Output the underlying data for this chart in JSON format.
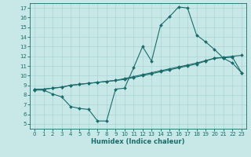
{
  "xlabel": "Humidex (Indice chaleur)",
  "bg_color": "#c8e8e8",
  "line_color": "#1a6b6b",
  "grid_color": "#aad4d4",
  "xlim": [
    -0.5,
    23.5
  ],
  "ylim": [
    4.5,
    17.5
  ],
  "xticks": [
    0,
    1,
    2,
    3,
    4,
    5,
    6,
    7,
    8,
    9,
    10,
    11,
    12,
    13,
    14,
    15,
    16,
    17,
    18,
    19,
    20,
    21,
    22,
    23
  ],
  "yticks": [
    5,
    6,
    7,
    8,
    9,
    10,
    11,
    12,
    13,
    14,
    15,
    16,
    17
  ],
  "line1_x": [
    0,
    1,
    2,
    3,
    4,
    5,
    6,
    7,
    8,
    9,
    10,
    11,
    12,
    13,
    14,
    15,
    16,
    17,
    18,
    19,
    20,
    21,
    22,
    23
  ],
  "line1_y": [
    8.5,
    8.5,
    8.1,
    7.8,
    6.8,
    6.6,
    6.5,
    5.3,
    5.3,
    8.6,
    8.7,
    10.8,
    13.0,
    11.5,
    15.2,
    16.1,
    17.1,
    17.0,
    14.2,
    13.5,
    12.7,
    11.8,
    11.3,
    10.3
  ],
  "line2_x": [
    0,
    1,
    2,
    3,
    4,
    5,
    6,
    7,
    8,
    9,
    10,
    11,
    12,
    13,
    14,
    15,
    16,
    17,
    18,
    19,
    20,
    21,
    22,
    23
  ],
  "line2_y": [
    8.6,
    8.6,
    8.7,
    8.8,
    9.0,
    9.1,
    9.2,
    9.3,
    9.4,
    9.5,
    9.6,
    9.8,
    10.0,
    10.2,
    10.4,
    10.6,
    10.8,
    11.0,
    11.2,
    11.5,
    11.8,
    11.9,
    12.0,
    12.1
  ],
  "line3_x": [
    0,
    1,
    2,
    3,
    4,
    5,
    6,
    7,
    8,
    9,
    10,
    11,
    12,
    13,
    14,
    15,
    16,
    17,
    18,
    19,
    20,
    21,
    22,
    23
  ],
  "line3_y": [
    8.6,
    8.6,
    8.7,
    8.8,
    9.0,
    9.1,
    9.2,
    9.3,
    9.4,
    9.5,
    9.7,
    9.9,
    10.1,
    10.3,
    10.5,
    10.7,
    10.9,
    11.1,
    11.3,
    11.55,
    11.8,
    11.85,
    11.9,
    10.3
  ]
}
